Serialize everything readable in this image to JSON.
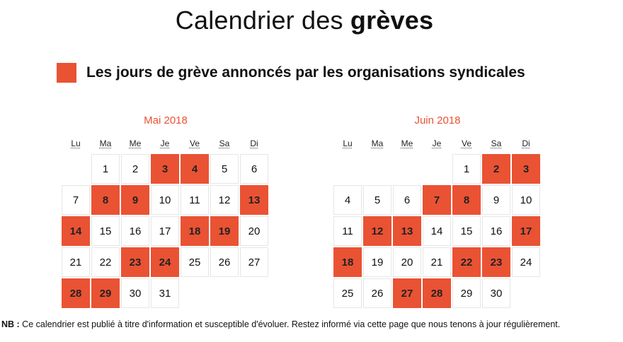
{
  "title": {
    "regular": "Calendrier des ",
    "bold": "grèves"
  },
  "legend": {
    "label": "Les jours de grève annoncés par les organisations syndicales",
    "color": "#ea5234"
  },
  "weekdays": [
    "Lu",
    "Ma",
    "Me",
    "Je",
    "Ve",
    "Sa",
    "Di"
  ],
  "months": [
    {
      "title": "Mai 2018",
      "start_offset": 1,
      "days": 31,
      "strike_days": [
        3,
        4,
        8,
        9,
        13,
        14,
        18,
        19,
        23,
        24,
        28,
        29
      ]
    },
    {
      "title": "Juin 2018",
      "start_offset": 4,
      "days": 30,
      "strike_days": [
        2,
        3,
        7,
        8,
        12,
        13,
        17,
        18,
        22,
        23,
        27,
        28
      ]
    }
  ],
  "footnote": {
    "prefix": "NB :",
    "text": " Ce calendrier est publié à titre d'information et susceptible d'évoluer. Restez informé via cette page que nous tenons à jour régulièrement."
  }
}
